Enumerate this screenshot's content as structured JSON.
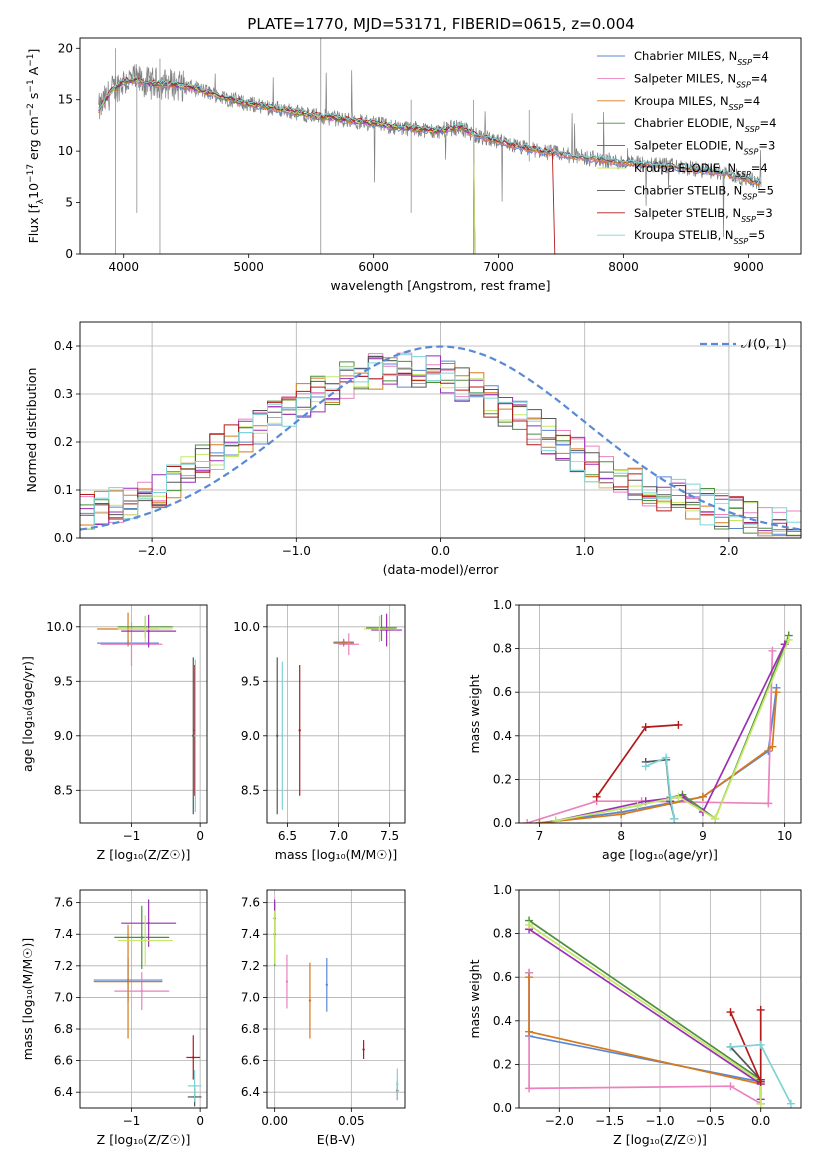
{
  "figure": {
    "title": "PLATE=1770, MJD=53171, FIBERID=0615, z=0.004"
  },
  "colors": {
    "Chabrier MILES": "#5a86d6",
    "Salpeter MILES": "#e982be",
    "Kroupa MILES": "#d57a1c",
    "Chabrier ELODIE": "#4f8f3f",
    "Salpeter ELODIE": "#9b2fb5",
    "Kroupa ELODIE": "#c5e86a",
    "Chabrier STELIB": "#555555",
    "Salpeter STELIB": "#b21a1a",
    "Kroupa STELIB": "#7fd3d6",
    "data": "#808080",
    "normal": "#5a8ad6"
  },
  "chart_data": [
    {
      "id": "spectrum",
      "type": "line",
      "title": "PLATE=1770, MJD=53171, FIBERID=0615, z=0.004",
      "xlabel": "wavelength [Angstrom, rest frame]",
      "ylabel_parts": [
        "Flux [f",
        "λ",
        "10",
        "−17",
        " erg cm",
        "−2",
        " s",
        "−1",
        " A",
        "−1",
        "]"
      ],
      "xlim": [
        3650,
        9420
      ],
      "ylim": [
        0,
        21
      ],
      "xticks": [
        4000,
        5000,
        6000,
        7000,
        8000,
        9000
      ],
      "yticks": [
        0,
        5,
        10,
        15,
        20
      ],
      "grid": false,
      "legend_position": "upper right",
      "legend": [
        {
          "model": "Chabrier MILES",
          "n": "4"
        },
        {
          "model": "Salpeter MILES",
          "n": "4"
        },
        {
          "model": "Kroupa MILES",
          "n": "4"
        },
        {
          "model": "Chabrier ELODIE",
          "n": "4"
        },
        {
          "model": "Salpeter ELODIE",
          "n": "3"
        },
        {
          "model": "Kroupa ELODIE",
          "n": "4"
        },
        {
          "model": "Chabrier STELIB",
          "n": "5"
        },
        {
          "model": "Salpeter STELIB",
          "n": "3"
        },
        {
          "model": "Kroupa STELIB",
          "n": "5"
        }
      ],
      "model_continuum": {
        "x": [
          3800,
          3900,
          4000,
          4100,
          4200,
          4400,
          4600,
          4800,
          5000,
          5200,
          5500,
          5800,
          6000,
          6200,
          6400,
          6500,
          6600,
          6700,
          6800,
          7000,
          7200,
          7400,
          7600,
          8000,
          8400,
          8800,
          9100
        ],
        "y": [
          14.0,
          15.8,
          16.8,
          16.9,
          16.6,
          16.5,
          16.0,
          15.2,
          14.6,
          14.2,
          13.5,
          13.0,
          12.7,
          12.3,
          12.1,
          11.9,
          12.2,
          12.3,
          11.6,
          10.9,
          10.3,
          9.9,
          9.5,
          8.9,
          8.5,
          7.9,
          6.9
        ]
      },
      "observed_data_extent": [
        3800,
        9100
      ]
    },
    {
      "id": "residuals",
      "type": "bar",
      "ylabel": "Normed distribution",
      "xlabel": "(data-model)/error",
      "xlim": [
        -2.5,
        2.5
      ],
      "ylim": [
        0,
        0.45
      ],
      "xticks": [
        -2,
        -1,
        0,
        1,
        2
      ],
      "yticks": [
        0.0,
        0.1,
        0.2,
        0.3,
        0.4
      ],
      "grid": true,
      "legend_position": "upper right",
      "legend": [
        {
          "label": "𝒩(0, 1)"
        }
      ],
      "bin_width": 0.1,
      "reference_curve": "standard normal density",
      "histogram_envelope": {
        "x": [
          -2.5,
          -2.0,
          -1.5,
          -1.0,
          -0.5,
          0.0,
          0.5,
          1.0,
          1.5,
          2.0,
          2.5
        ],
        "y": [
          0.05,
          0.09,
          0.19,
          0.28,
          0.35,
          0.35,
          0.26,
          0.16,
          0.1,
          0.05,
          0.02
        ]
      }
    },
    {
      "id": "age_vs_Z",
      "type": "scatter",
      "xlabel": "Z [log₁₀(Z/Z☉)]",
      "ylabel": "age  [log₁₀(age/yr)]",
      "xlim": [
        -1.75,
        0.1
      ],
      "ylim": [
        8.2,
        10.2
      ],
      "xticks": [
        -1,
        0
      ],
      "yticks": [
        8.5,
        9.0,
        9.5,
        10.0
      ],
      "grid": true,
      "points": [
        {
          "model": "Chabrier MILES",
          "x": -1.05,
          "y": 9.85,
          "xerr": 0.45,
          "yerr": 0.03
        },
        {
          "model": "Salpeter MILES",
          "x": -1.0,
          "y": 9.84,
          "xerr": 0.45,
          "yerr": 0.2
        },
        {
          "model": "Kroupa MILES",
          "x": -1.05,
          "y": 9.98,
          "xerr": 0.45,
          "yerr": 0.15
        },
        {
          "model": "Chabrier ELODIE",
          "x": -0.8,
          "y": 10.0,
          "xerr": 0.4,
          "yerr": 0.1
        },
        {
          "model": "Salpeter ELODIE",
          "x": -0.75,
          "y": 9.96,
          "xerr": 0.4,
          "yerr": 0.15
        },
        {
          "model": "Kroupa ELODIE",
          "x": -0.8,
          "y": 9.98,
          "xerr": 0.4,
          "yerr": 0.12
        },
        {
          "model": "Chabrier STELIB",
          "x": -0.1,
          "y": 9.0,
          "xerr": 0.0,
          "yerr": 0.72
        },
        {
          "model": "Salpeter STELIB",
          "x": -0.08,
          "y": 9.05,
          "xerr": 0.0,
          "yerr": 0.6
        },
        {
          "model": "Kroupa STELIB",
          "x": -0.07,
          "y": 9.0,
          "xerr": 0.0,
          "yerr": 0.7
        }
      ]
    },
    {
      "id": "age_vs_mass",
      "type": "scatter",
      "xlabel": "mass [log₁₀(M/M☉)]",
      "ylabel": "",
      "xlim": [
        6.3,
        7.65
      ],
      "ylim": [
        8.2,
        10.2
      ],
      "xticks": [
        6.5,
        7.0,
        7.5
      ],
      "yticks": [
        8.5,
        9.0,
        9.5,
        10.0
      ],
      "grid": true,
      "points": [
        {
          "model": "Chabrier MILES",
          "x": 7.05,
          "y": 9.85,
          "xerr": 0.1,
          "yerr": 0.03
        },
        {
          "model": "Salpeter MILES",
          "x": 7.1,
          "y": 9.84,
          "xerr": 0.1,
          "yerr": 0.1
        },
        {
          "model": "Kroupa MILES",
          "x": 7.05,
          "y": 9.86,
          "xerr": 0.1,
          "yerr": 0.03
        },
        {
          "model": "Chabrier ELODIE",
          "x": 7.42,
          "y": 9.99,
          "xerr": 0.15,
          "yerr": 0.12
        },
        {
          "model": "Salpeter ELODIE",
          "x": 7.47,
          "y": 9.97,
          "xerr": 0.15,
          "yerr": 0.15
        },
        {
          "model": "Kroupa ELODIE",
          "x": 7.4,
          "y": 9.98,
          "xerr": 0.15,
          "yerr": 0.12
        },
        {
          "model": "Chabrier STELIB",
          "x": 6.4,
          "y": 9.0,
          "xerr": 0.0,
          "yerr": 0.72
        },
        {
          "model": "Salpeter STELIB",
          "x": 6.62,
          "y": 9.05,
          "xerr": 0.0,
          "yerr": 0.6
        },
        {
          "model": "Kroupa STELIB",
          "x": 6.45,
          "y": 9.0,
          "xerr": 0.0,
          "yerr": 0.68
        }
      ]
    },
    {
      "id": "weight_vs_age",
      "type": "line",
      "xlabel": "age  [log₁₀(age/yr)]",
      "ylabel": "mass weight",
      "xlim": [
        6.75,
        10.2
      ],
      "ylim": [
        0,
        1.0
      ],
      "xticks": [
        7,
        8,
        9,
        10
      ],
      "yticks": [
        0.0,
        0.2,
        0.4,
        0.6,
        0.8,
        1.0
      ],
      "grid": true,
      "series": [
        {
          "model": "Chabrier MILES",
          "x": [
            7.0,
            8.0,
            9.0,
            9.8,
            9.9
          ],
          "y": [
            0.0,
            0.05,
            0.12,
            0.33,
            0.62
          ]
        },
        {
          "model": "Salpeter MILES",
          "x": [
            6.85,
            7.7,
            8.25,
            9.8,
            9.85
          ],
          "y": [
            0.0,
            0.1,
            0.1,
            0.09,
            0.79
          ]
        },
        {
          "model": "Kroupa MILES",
          "x": [
            7.0,
            8.0,
            9.0,
            9.85,
            9.9
          ],
          "y": [
            0.0,
            0.04,
            0.12,
            0.35,
            0.6
          ]
        },
        {
          "model": "Chabrier ELODIE",
          "x": [
            7.2,
            8.2,
            8.75,
            9.15,
            10.05
          ],
          "y": [
            0.01,
            0.08,
            0.13,
            0.02,
            0.86
          ]
        },
        {
          "model": "Salpeter ELODIE",
          "x": [
            7.2,
            8.3,
            8.75,
            9.0,
            10.0
          ],
          "y": [
            0.01,
            0.1,
            0.12,
            0.05,
            0.82
          ]
        },
        {
          "model": "Kroupa ELODIE",
          "x": [
            7.2,
            8.2,
            8.7,
            9.15,
            10.05
          ],
          "y": [
            0.01,
            0.08,
            0.12,
            0.02,
            0.84
          ]
        },
        {
          "model": "Chabrier STELIB",
          "x": [
            8.3,
            8.55,
            8.6,
            8.65
          ],
          "y": [
            0.28,
            0.29,
            0.1,
            0.02
          ]
        },
        {
          "model": "Salpeter STELIB",
          "x": [
            7.7,
            8.3,
            8.7
          ],
          "y": [
            0.12,
            0.44,
            0.45
          ]
        },
        {
          "model": "Kroupa STELIB",
          "x": [
            8.3,
            8.55,
            8.6,
            8.65
          ],
          "y": [
            0.26,
            0.3,
            0.12,
            0.02
          ]
        }
      ]
    },
    {
      "id": "mass_vs_Z",
      "type": "scatter",
      "xlabel": "Z [log₁₀(Z/Z☉)]",
      "ylabel": "mass [log₁₀(M/M☉)]",
      "xlim": [
        -1.75,
        0.1
      ],
      "ylim": [
        6.3,
        7.68
      ],
      "xticks": [
        -1,
        0
      ],
      "yticks": [
        6.4,
        6.6,
        6.8,
        7.0,
        7.2,
        7.4,
        7.6
      ],
      "grid": true,
      "points": [
        {
          "model": "Chabrier MILES",
          "x": -1.05,
          "y": 7.11,
          "xerr": 0.5,
          "yerr": 0.14
        },
        {
          "model": "Salpeter MILES",
          "x": -0.85,
          "y": 7.04,
          "xerr": 0.4,
          "yerr": 0.12
        },
        {
          "model": "Kroupa MILES",
          "x": -1.05,
          "y": 7.1,
          "xerr": 0.5,
          "yerr": 0.36
        },
        {
          "model": "Chabrier ELODIE",
          "x": -0.85,
          "y": 7.38,
          "xerr": 0.4,
          "yerr": 0.2
        },
        {
          "model": "Salpeter ELODIE",
          "x": -0.75,
          "y": 7.47,
          "xerr": 0.4,
          "yerr": 0.15
        },
        {
          "model": "Kroupa ELODIE",
          "x": -0.8,
          "y": 7.36,
          "xerr": 0.4,
          "yerr": 0.16
        },
        {
          "model": "Chabrier STELIB",
          "x": -0.08,
          "y": 6.37,
          "xerr": 0.1,
          "yerr": 0.06
        },
        {
          "model": "Salpeter STELIB",
          "x": -0.1,
          "y": 6.62,
          "xerr": 0.1,
          "yerr": 0.14
        },
        {
          "model": "Kroupa STELIB",
          "x": -0.08,
          "y": 6.44,
          "xerr": 0.1,
          "yerr": 0.1
        }
      ]
    },
    {
      "id": "mass_vs_ebv",
      "type": "scatter",
      "xlabel": "E(B-V)",
      "ylabel": "",
      "xlim": [
        -0.005,
        0.085
      ],
      "ylim": [
        6.3,
        7.68
      ],
      "xticks": [
        0.0,
        0.05
      ],
      "yticks": [
        6.4,
        6.6,
        6.8,
        7.0,
        7.2,
        7.4,
        7.6
      ],
      "grid": true,
      "points": [
        {
          "model": "Chabrier MILES",
          "x": 0.034,
          "y": 7.08,
          "xerr": 0.0,
          "yerr": 0.17
        },
        {
          "model": "Salpeter MILES",
          "x": 0.008,
          "y": 7.1,
          "xerr": 0.0,
          "yerr": 0.17
        },
        {
          "model": "Kroupa MILES",
          "x": 0.023,
          "y": 6.98,
          "xerr": 0.0,
          "yerr": 0.24
        },
        {
          "model": "Chabrier ELODIE",
          "x": 0.0,
          "y": 7.4,
          "xerr": 0.0,
          "yerr": 0.2
        },
        {
          "model": "Salpeter ELODIE",
          "x": 0.0,
          "y": 7.5,
          "xerr": 0.0,
          "yerr": 0.12
        },
        {
          "model": "Kroupa ELODIE",
          "x": 0.0,
          "y": 7.38,
          "xerr": 0.0,
          "yerr": 0.17
        },
        {
          "model": "Chabrier STELIB",
          "x": 0.08,
          "y": 6.41,
          "xerr": 0.0,
          "yerr": 0.06
        },
        {
          "model": "Salpeter STELIB",
          "x": 0.058,
          "y": 6.67,
          "xerr": 0.0,
          "yerr": 0.06
        },
        {
          "model": "Kroupa STELIB",
          "x": 0.08,
          "y": 6.45,
          "xerr": 0.0,
          "yerr": 0.1
        }
      ]
    },
    {
      "id": "weight_vs_Z",
      "type": "line",
      "xlabel": "Z [log₁₀(Z/Z☉)]",
      "ylabel": "mass weight",
      "xlim": [
        -2.4,
        0.4
      ],
      "ylim": [
        0,
        1.0
      ],
      "xticks": [
        -2.0,
        -1.5,
        -1.0,
        -0.5,
        0.0
      ],
      "yticks": [
        0.0,
        0.2,
        0.4,
        0.6,
        0.8,
        1.0
      ],
      "grid": true,
      "series": [
        {
          "model": "Chabrier MILES",
          "x": [
            -2.3,
            -2.3,
            0.0,
            0.0
          ],
          "y": [
            0.62,
            0.33,
            0.12,
            0.02
          ]
        },
        {
          "model": "Salpeter MILES",
          "x": [
            -2.3,
            -2.3,
            -0.3,
            0.0
          ],
          "y": [
            0.62,
            0.09,
            0.1,
            0.02
          ]
        },
        {
          "model": "Kroupa MILES",
          "x": [
            -2.3,
            -2.3,
            0.0,
            0.0
          ],
          "y": [
            0.6,
            0.35,
            0.11,
            0.02
          ]
        },
        {
          "model": "Chabrier ELODIE",
          "x": [
            -2.3,
            0.0,
            0.0
          ],
          "y": [
            0.86,
            0.13,
            0.02
          ]
        },
        {
          "model": "Salpeter ELODIE",
          "x": [
            -2.3,
            0.0,
            0.0
          ],
          "y": [
            0.82,
            0.11,
            0.04
          ]
        },
        {
          "model": "Kroupa ELODIE",
          "x": [
            -2.3,
            0.0,
            0.0
          ],
          "y": [
            0.84,
            0.12,
            0.02
          ]
        },
        {
          "model": "Chabrier STELIB",
          "x": [
            -0.3,
            0.0,
            0.0
          ],
          "y": [
            0.28,
            0.13,
            0.13
          ]
        },
        {
          "model": "Salpeter STELIB",
          "x": [
            -0.3,
            0.0,
            0.0
          ],
          "y": [
            0.44,
            0.12,
            0.45
          ]
        },
        {
          "model": "Kroupa STELIB",
          "x": [
            -0.3,
            0.0,
            0.3
          ],
          "y": [
            0.28,
            0.29,
            0.02
          ]
        }
      ]
    }
  ]
}
